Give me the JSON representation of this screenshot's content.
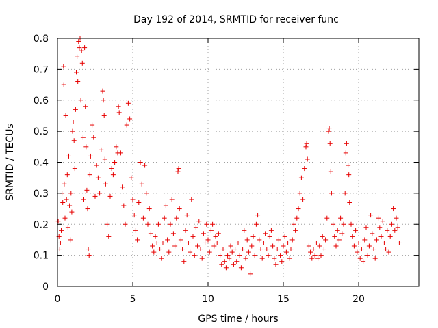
{
  "chart_data": {
    "type": "scatter",
    "title": "Day 192 of 2014, SRMTID for receiver func",
    "xlabel": "GPS time / hours",
    "ylabel": "SRMTID / TECUs",
    "xlim": [
      0,
      24
    ],
    "ylim": [
      0,
      0.8
    ],
    "xticks": [
      0,
      5,
      10,
      15,
      20
    ],
    "yticks": [
      0,
      0.1,
      0.2,
      0.3,
      0.4,
      0.5,
      0.6,
      0.7,
      0.8
    ],
    "xtick_labels": [
      "0",
      "5",
      "10",
      "15",
      "20"
    ],
    "ytick_labels": [
      "0",
      "0.1",
      "0.2",
      "0.3",
      "0.4",
      "0.5",
      "0.6",
      "0.7",
      "0.8"
    ],
    "grid": true,
    "marker": "+",
    "color": "#e60000",
    "series": [
      {
        "name": "SRMTID",
        "points": [
          [
            0.05,
            0.21
          ],
          [
            0.1,
            0.16
          ],
          [
            0.15,
            0.12
          ],
          [
            0.2,
            0.14
          ],
          [
            0.25,
            0.18
          ],
          [
            0.3,
            0.3
          ],
          [
            0.35,
            0.27
          ],
          [
            0.4,
            0.71
          ],
          [
            0.42,
            0.65
          ],
          [
            0.45,
            0.33
          ],
          [
            0.5,
            0.22
          ],
          [
            0.55,
            0.55
          ],
          [
            0.6,
            0.28
          ],
          [
            0.65,
            0.36
          ],
          [
            0.7,
            0.19
          ],
          [
            0.75,
            0.42
          ],
          [
            0.8,
            0.26
          ],
          [
            0.85,
            0.15
          ],
          [
            0.9,
            0.3
          ],
          [
            0.95,
            0.24
          ],
          [
            1.0,
            0.5
          ],
          [
            1.05,
            0.53
          ],
          [
            1.1,
            0.47
          ],
          [
            1.15,
            0.38
          ],
          [
            1.2,
            0.57
          ],
          [
            1.25,
            0.69
          ],
          [
            1.3,
            0.74
          ],
          [
            1.35,
            0.66
          ],
          [
            1.4,
            0.79
          ],
          [
            1.45,
            0.77
          ],
          [
            1.5,
            0.8
          ],
          [
            1.55,
            0.6
          ],
          [
            1.6,
            0.76
          ],
          [
            1.65,
            0.72
          ],
          [
            1.7,
            0.48
          ],
          [
            1.75,
            0.28
          ],
          [
            1.8,
            0.77
          ],
          [
            1.85,
            0.58
          ],
          [
            1.9,
            0.45
          ],
          [
            1.95,
            0.31
          ],
          [
            2.0,
            0.25
          ],
          [
            2.05,
            0.12
          ],
          [
            2.1,
            0.1
          ],
          [
            2.15,
            0.36
          ],
          [
            2.2,
            0.42
          ],
          [
            2.3,
            0.52
          ],
          [
            2.4,
            0.48
          ],
          [
            2.5,
            0.29
          ],
          [
            2.6,
            0.39
          ],
          [
            2.7,
            0.35
          ],
          [
            2.8,
            0.3
          ],
          [
            2.9,
            0.44
          ],
          [
            3.0,
            0.63
          ],
          [
            3.05,
            0.6
          ],
          [
            3.1,
            0.55
          ],
          [
            3.15,
            0.41
          ],
          [
            3.2,
            0.33
          ],
          [
            3.3,
            0.2
          ],
          [
            3.4,
            0.16
          ],
          [
            3.5,
            0.29
          ],
          [
            3.6,
            0.38
          ],
          [
            3.7,
            0.36
          ],
          [
            3.8,
            0.4
          ],
          [
            3.9,
            0.45
          ],
          [
            4.0,
            0.43
          ],
          [
            4.05,
            0.58
          ],
          [
            4.1,
            0.56
          ],
          [
            4.2,
            0.43
          ],
          [
            4.3,
            0.32
          ],
          [
            4.4,
            0.26
          ],
          [
            4.5,
            0.2
          ],
          [
            4.6,
            0.52
          ],
          [
            4.7,
            0.59
          ],
          [
            4.8,
            0.54
          ],
          [
            4.9,
            0.35
          ],
          [
            5.0,
            0.28
          ],
          [
            5.1,
            0.23
          ],
          [
            5.2,
            0.18
          ],
          [
            5.3,
            0.15
          ],
          [
            5.4,
            0.27
          ],
          [
            5.5,
            0.4
          ],
          [
            5.6,
            0.33
          ],
          [
            5.7,
            0.22
          ],
          [
            5.8,
            0.39
          ],
          [
            5.9,
            0.3
          ],
          [
            6.0,
            0.2
          ],
          [
            6.1,
            0.25
          ],
          [
            6.2,
            0.17
          ],
          [
            6.3,
            0.13
          ],
          [
            6.4,
            0.11
          ],
          [
            6.5,
            0.16
          ],
          [
            6.6,
            0.14
          ],
          [
            6.7,
            0.2
          ],
          [
            6.8,
            0.12
          ],
          [
            6.9,
            0.09
          ],
          [
            7.0,
            0.14
          ],
          [
            7.1,
            0.22
          ],
          [
            7.2,
            0.26
          ],
          [
            7.3,
            0.15
          ],
          [
            7.4,
            0.11
          ],
          [
            7.5,
            0.2
          ],
          [
            7.6,
            0.28
          ],
          [
            7.7,
            0.17
          ],
          [
            7.8,
            0.13
          ],
          [
            7.9,
            0.22
          ],
          [
            8.0,
            0.37
          ],
          [
            8.05,
            0.38
          ],
          [
            8.1,
            0.25
          ],
          [
            8.2,
            0.15
          ],
          [
            8.3,
            0.12
          ],
          [
            8.4,
            0.08
          ],
          [
            8.5,
            0.18
          ],
          [
            8.6,
            0.23
          ],
          [
            8.7,
            0.14
          ],
          [
            8.8,
            0.11
          ],
          [
            8.9,
            0.28
          ],
          [
            9.0,
            0.16
          ],
          [
            9.1,
            0.1
          ],
          [
            9.2,
            0.19
          ],
          [
            9.3,
            0.13
          ],
          [
            9.4,
            0.21
          ],
          [
            9.5,
            0.12
          ],
          [
            9.6,
            0.09
          ],
          [
            9.7,
            0.17
          ],
          [
            9.8,
            0.14
          ],
          [
            9.9,
            0.2
          ],
          [
            10.0,
            0.15
          ],
          [
            10.1,
            0.11
          ],
          [
            10.2,
            0.18
          ],
          [
            10.3,
            0.2
          ],
          [
            10.4,
            0.13
          ],
          [
            10.5,
            0.16
          ],
          [
            10.6,
            0.14
          ],
          [
            10.7,
            0.17
          ],
          [
            10.8,
            0.1
          ],
          [
            10.9,
            0.07
          ],
          [
            11.0,
            0.12
          ],
          [
            11.1,
            0.08
          ],
          [
            11.2,
            0.06
          ],
          [
            11.3,
            0.1
          ],
          [
            11.4,
            0.09
          ],
          [
            11.5,
            0.13
          ],
          [
            11.6,
            0.11
          ],
          [
            11.7,
            0.07
          ],
          [
            11.8,
            0.12
          ],
          [
            11.9,
            0.08
          ],
          [
            12.0,
            0.14
          ],
          [
            12.1,
            0.1
          ],
          [
            12.2,
            0.06
          ],
          [
            12.3,
            0.12
          ],
          [
            12.4,
            0.18
          ],
          [
            12.5,
            0.09
          ],
          [
            12.6,
            0.15
          ],
          [
            12.7,
            0.11
          ],
          [
            12.8,
            0.04
          ],
          [
            12.9,
            0.13
          ],
          [
            13.0,
            0.16
          ],
          [
            13.1,
            0.1
          ],
          [
            13.2,
            0.2
          ],
          [
            13.3,
            0.23
          ],
          [
            13.4,
            0.15
          ],
          [
            13.5,
            0.12
          ],
          [
            13.6,
            0.09
          ],
          [
            13.7,
            0.14
          ],
          [
            13.8,
            0.17
          ],
          [
            13.9,
            0.12
          ],
          [
            14.0,
            0.1
          ],
          [
            14.1,
            0.16
          ],
          [
            14.2,
            0.18
          ],
          [
            14.3,
            0.13
          ],
          [
            14.4,
            0.09
          ],
          [
            14.5,
            0.07
          ],
          [
            14.6,
            0.12
          ],
          [
            14.7,
            0.15
          ],
          [
            14.8,
            0.1
          ],
          [
            14.9,
            0.08
          ],
          [
            15.0,
            0.13
          ],
          [
            15.1,
            0.16
          ],
          [
            15.2,
            0.11
          ],
          [
            15.3,
            0.14
          ],
          [
            15.4,
            0.09
          ],
          [
            15.5,
            0.12
          ],
          [
            15.6,
            0.15
          ],
          [
            15.7,
            0.2
          ],
          [
            15.8,
            0.18
          ],
          [
            15.9,
            0.22
          ],
          [
            16.0,
            0.25
          ],
          [
            16.1,
            0.3
          ],
          [
            16.2,
            0.35
          ],
          [
            16.3,
            0.28
          ],
          [
            16.4,
            0.38
          ],
          [
            16.5,
            0.45
          ],
          [
            16.55,
            0.46
          ],
          [
            16.6,
            0.41
          ],
          [
            16.7,
            0.13
          ],
          [
            16.8,
            0.11
          ],
          [
            16.9,
            0.09
          ],
          [
            17.0,
            0.12
          ],
          [
            17.1,
            0.1
          ],
          [
            17.2,
            0.14
          ],
          [
            17.3,
            0.09
          ],
          [
            17.4,
            0.13
          ],
          [
            17.5,
            0.1
          ],
          [
            17.6,
            0.16
          ],
          [
            17.7,
            0.12
          ],
          [
            17.8,
            0.15
          ],
          [
            17.9,
            0.22
          ],
          [
            18.0,
            0.5
          ],
          [
            18.05,
            0.51
          ],
          [
            18.1,
            0.46
          ],
          [
            18.15,
            0.37
          ],
          [
            18.2,
            0.3
          ],
          [
            18.3,
            0.2
          ],
          [
            18.4,
            0.16
          ],
          [
            18.5,
            0.13
          ],
          [
            18.6,
            0.18
          ],
          [
            18.7,
            0.15
          ],
          [
            18.8,
            0.22
          ],
          [
            18.9,
            0.17
          ],
          [
            19.0,
            0.2
          ],
          [
            19.1,
            0.3
          ],
          [
            19.15,
            0.43
          ],
          [
            19.2,
            0.46
          ],
          [
            19.3,
            0.39
          ],
          [
            19.35,
            0.36
          ],
          [
            19.4,
            0.27
          ],
          [
            19.5,
            0.2
          ],
          [
            19.6,
            0.16
          ],
          [
            19.7,
            0.13
          ],
          [
            19.8,
            0.18
          ],
          [
            19.9,
            0.11
          ],
          [
            20.0,
            0.14
          ],
          [
            20.1,
            0.09
          ],
          [
            20.2,
            0.12
          ],
          [
            20.3,
            0.08
          ],
          [
            20.4,
            0.15
          ],
          [
            20.5,
            0.19
          ],
          [
            20.6,
            0.1
          ],
          [
            20.7,
            0.13
          ],
          [
            20.8,
            0.23
          ],
          [
            20.9,
            0.17
          ],
          [
            21.0,
            0.12
          ],
          [
            21.1,
            0.09
          ],
          [
            21.2,
            0.15
          ],
          [
            21.3,
            0.22
          ],
          [
            21.4,
            0.19
          ],
          [
            21.5,
            0.16
          ],
          [
            21.6,
            0.21
          ],
          [
            21.7,
            0.14
          ],
          [
            21.8,
            0.12
          ],
          [
            21.9,
            0.18
          ],
          [
            22.0,
            0.11
          ],
          [
            22.1,
            0.16
          ],
          [
            22.2,
            0.2
          ],
          [
            22.3,
            0.25
          ],
          [
            22.4,
            0.18
          ],
          [
            22.5,
            0.22
          ],
          [
            22.6,
            0.19
          ],
          [
            22.7,
            0.14
          ]
        ]
      }
    ]
  }
}
